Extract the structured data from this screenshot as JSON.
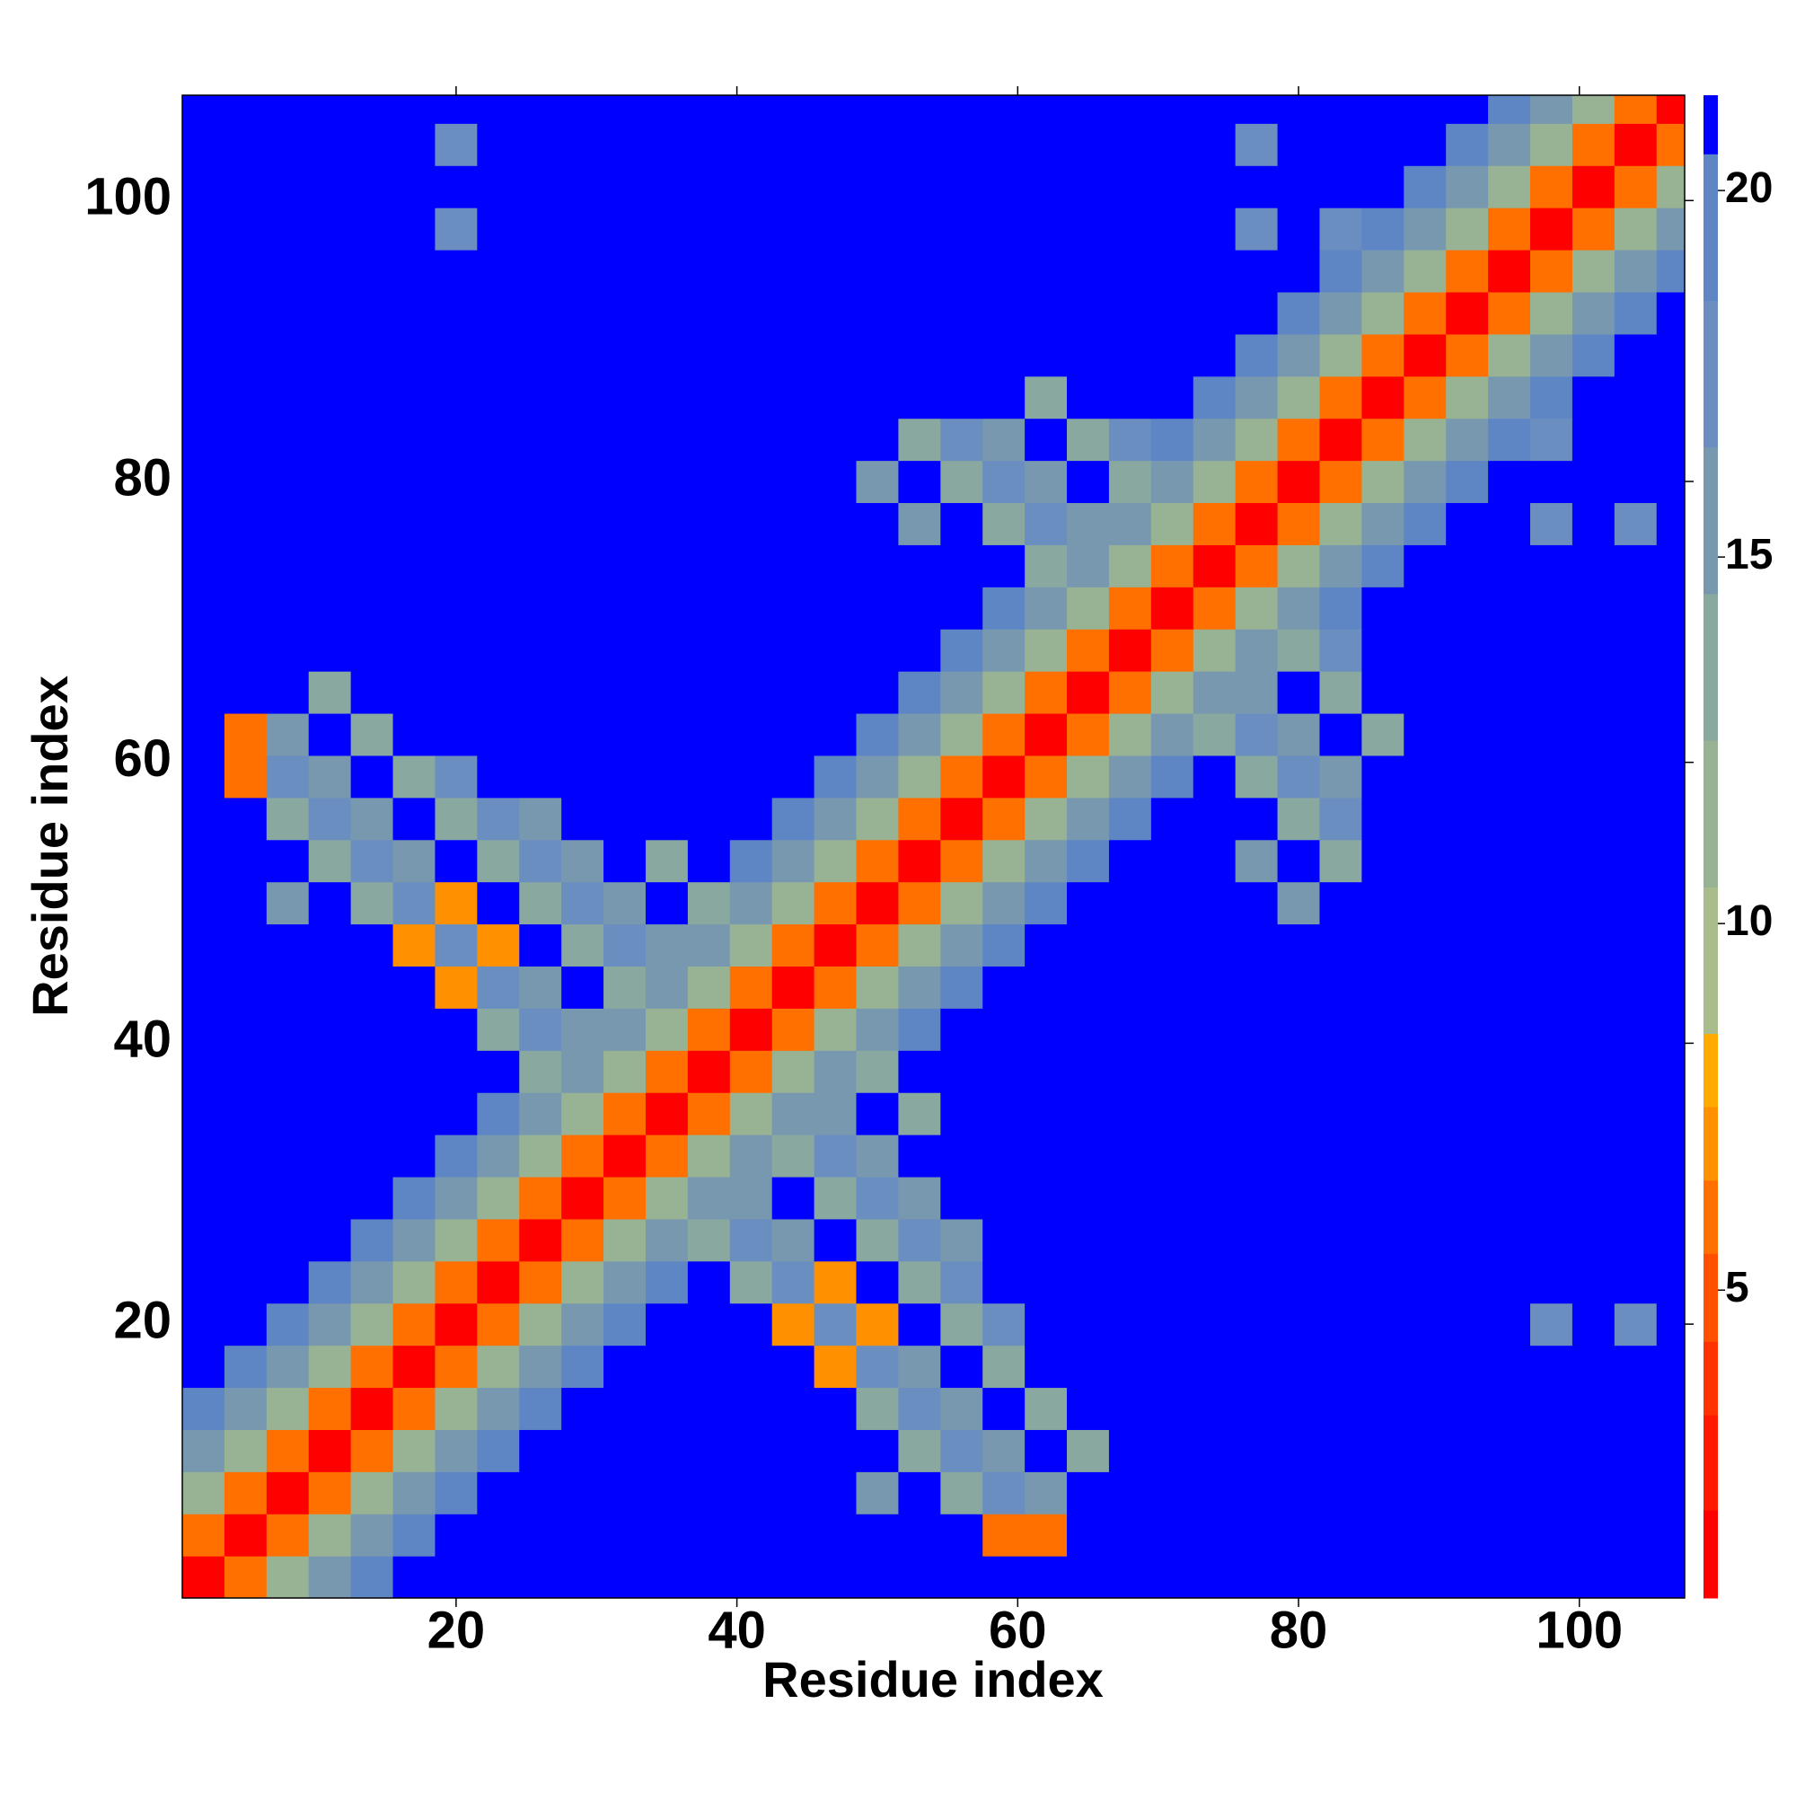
{
  "chart_data": {
    "type": "heatmap",
    "x_label": "Residue index",
    "y_label": "Residue index",
    "xlim": [
      0.5,
      107.5
    ],
    "ylim": [
      0.5,
      107.5
    ],
    "xticks": [
      20,
      40,
      60,
      80,
      100
    ],
    "yticks": [
      20,
      40,
      60,
      80,
      100
    ],
    "zlim": [
      0.8,
      21.3
    ],
    "zticks": [
      5,
      10,
      15,
      20
    ],
    "colorscale": [
      {
        "max": 2,
        "color": "#ff0000"
      },
      {
        "max": 3.3,
        "color": "#ff1a00"
      },
      {
        "max": 4.3,
        "color": "#ff3300"
      },
      {
        "max": 5.5,
        "color": "#ff5000"
      },
      {
        "max": 6.5,
        "color": "#ff7000"
      },
      {
        "max": 7.5,
        "color": "#ff9000"
      },
      {
        "max": 8.5,
        "color": "#ffaa00"
      },
      {
        "max": 10.5,
        "color": "#a8bc8c"
      },
      {
        "max": 12.5,
        "color": "#98b294"
      },
      {
        "max": 14.5,
        "color": "#88a8a0"
      },
      {
        "max": 16.5,
        "color": "#7898b0"
      },
      {
        "max": 18.5,
        "color": "#6a8ec0"
      },
      {
        "max": 20.5,
        "color": "#5f86c4"
      },
      {
        "max": 21.3,
        "color": "#0000ff"
      }
    ],
    "x": [
      2,
      5,
      8,
      11,
      14,
      17,
      20,
      23,
      26,
      29,
      32,
      35,
      38,
      41,
      44,
      47,
      50,
      53,
      56,
      59,
      62,
      65,
      68,
      71,
      74,
      77,
      80,
      83,
      86,
      89,
      92,
      95,
      98,
      101,
      104,
      107
    ],
    "y": [
      2,
      5,
      8,
      11,
      14,
      17,
      20,
      23,
      26,
      29,
      32,
      35,
      38,
      41,
      44,
      47,
      50,
      53,
      56,
      59,
      62,
      65,
      68,
      71,
      74,
      77,
      80,
      83,
      86,
      89,
      92,
      95,
      98,
      101,
      104,
      107
    ],
    "z": [
      [
        1,
        6,
        11,
        15,
        19,
        21,
        21,
        21,
        21,
        21,
        21,
        21,
        21,
        21,
        21,
        21,
        21,
        21,
        21,
        21,
        21,
        21,
        21,
        21,
        21,
        21,
        21,
        21,
        21,
        21,
        21,
        21,
        21,
        21,
        21,
        21
      ],
      [
        6,
        1,
        6,
        11,
        15,
        19,
        21,
        21,
        21,
        21,
        21,
        21,
        21,
        21,
        21,
        21,
        21,
        21,
        21,
        6,
        6,
        21,
        21,
        21,
        21,
        21,
        21,
        21,
        21,
        21,
        21,
        21,
        21,
        21,
        21,
        21
      ],
      [
        11,
        6,
        1,
        6,
        11,
        15,
        19,
        21,
        21,
        21,
        21,
        21,
        21,
        21,
        21,
        21,
        16,
        21,
        14,
        17,
        16,
        21,
        21,
        21,
        21,
        21,
        21,
        21,
        21,
        21,
        21,
        21,
        21,
        21,
        21,
        21
      ],
      [
        15,
        11,
        6,
        1,
        6,
        11,
        15,
        19,
        21,
        21,
        21,
        21,
        21,
        21,
        21,
        21,
        21,
        14,
        17,
        16,
        21,
        14,
        21,
        21,
        21,
        21,
        21,
        21,
        21,
        21,
        21,
        21,
        21,
        21,
        21,
        21
      ],
      [
        19,
        15,
        11,
        6,
        1,
        6,
        11,
        15,
        19,
        21,
        21,
        21,
        21,
        21,
        21,
        21,
        14,
        17,
        16,
        21,
        14,
        21,
        21,
        21,
        21,
        21,
        21,
        21,
        21,
        21,
        21,
        21,
        21,
        21,
        21,
        21
      ],
      [
        21,
        19,
        15,
        11,
        6,
        1,
        6,
        11,
        15,
        19,
        21,
        21,
        21,
        21,
        21,
        7,
        17,
        16,
        21,
        14,
        21,
        21,
        21,
        21,
        21,
        21,
        21,
        21,
        21,
        21,
        21,
        21,
        21,
        21,
        21,
        21
      ],
      [
        21,
        21,
        19,
        15,
        11,
        6,
        1,
        6,
        11,
        15,
        19,
        21,
        21,
        21,
        7,
        17,
        7,
        21,
        14,
        17,
        21,
        21,
        21,
        21,
        21,
        21,
        21,
        21,
        21,
        21,
        21,
        21,
        17,
        21,
        17,
        21
      ],
      [
        21,
        21,
        21,
        19,
        15,
        11,
        6,
        1,
        6,
        11,
        15,
        19,
        21,
        14,
        17,
        7,
        21,
        14,
        17,
        21,
        21,
        21,
        21,
        21,
        21,
        21,
        21,
        21,
        21,
        21,
        21,
        21,
        21,
        21,
        21,
        21
      ],
      [
        21,
        21,
        21,
        21,
        19,
        15,
        11,
        6,
        1,
        6,
        11,
        15,
        14,
        17,
        16,
        21,
        14,
        17,
        16,
        21,
        21,
        21,
        21,
        21,
        21,
        21,
        21,
        21,
        21,
        21,
        21,
        21,
        21,
        21,
        21,
        21
      ],
      [
        21,
        21,
        21,
        21,
        21,
        19,
        15,
        11,
        6,
        1,
        6,
        11,
        15,
        16,
        21,
        14,
        17,
        16,
        21,
        21,
        21,
        21,
        21,
        21,
        21,
        21,
        21,
        21,
        21,
        21,
        21,
        21,
        21,
        21,
        21,
        21
      ],
      [
        21,
        21,
        21,
        21,
        21,
        21,
        19,
        15,
        11,
        6,
        1,
        6,
        11,
        15,
        14,
        17,
        16,
        21,
        21,
        21,
        21,
        21,
        21,
        21,
        21,
        21,
        21,
        21,
        21,
        21,
        21,
        21,
        21,
        21,
        21,
        21
      ],
      [
        21,
        21,
        21,
        21,
        21,
        21,
        21,
        19,
        15,
        11,
        6,
        1,
        6,
        11,
        15,
        16,
        21,
        14,
        21,
        21,
        21,
        21,
        21,
        21,
        21,
        21,
        21,
        21,
        21,
        21,
        21,
        21,
        21,
        21,
        21,
        21
      ],
      [
        21,
        21,
        21,
        21,
        21,
        21,
        21,
        21,
        14,
        15,
        11,
        6,
        1,
        6,
        11,
        15,
        14,
        21,
        21,
        21,
        21,
        21,
        21,
        21,
        21,
        21,
        21,
        21,
        21,
        21,
        21,
        21,
        21,
        21,
        21,
        21
      ],
      [
        21,
        21,
        21,
        21,
        21,
        21,
        21,
        14,
        17,
        16,
        15,
        11,
        6,
        1,
        6,
        11,
        15,
        19,
        21,
        21,
        21,
        21,
        21,
        21,
        21,
        21,
        21,
        21,
        21,
        21,
        21,
        21,
        21,
        21,
        21,
        21
      ],
      [
        21,
        21,
        21,
        21,
        21,
        21,
        7,
        17,
        16,
        21,
        14,
        15,
        11,
        6,
        1,
        6,
        11,
        15,
        19,
        21,
        21,
        21,
        21,
        21,
        21,
        21,
        21,
        21,
        21,
        21,
        21,
        21,
        21,
        21,
        21,
        21
      ],
      [
        21,
        21,
        21,
        21,
        21,
        7,
        17,
        7,
        21,
        14,
        17,
        16,
        15,
        11,
        6,
        1,
        6,
        11,
        15,
        19,
        21,
        21,
        21,
        21,
        21,
        21,
        21,
        21,
        21,
        21,
        21,
        21,
        21,
        21,
        21,
        21
      ],
      [
        21,
        21,
        16,
        21,
        14,
        17,
        7,
        21,
        14,
        17,
        16,
        21,
        14,
        15,
        11,
        6,
        1,
        6,
        11,
        15,
        19,
        21,
        21,
        21,
        21,
        21,
        16,
        21,
        21,
        21,
        21,
        21,
        21,
        21,
        21,
        21
      ],
      [
        21,
        21,
        21,
        14,
        17,
        16,
        21,
        14,
        17,
        16,
        21,
        14,
        21,
        19,
        15,
        11,
        6,
        1,
        6,
        11,
        15,
        19,
        21,
        21,
        21,
        16,
        21,
        14,
        21,
        21,
        21,
        21,
        21,
        21,
        21,
        21
      ],
      [
        21,
        21,
        14,
        17,
        16,
        21,
        14,
        17,
        16,
        21,
        21,
        21,
        21,
        21,
        19,
        15,
        11,
        6,
        1,
        6,
        11,
        15,
        19,
        21,
        21,
        21,
        14,
        17,
        21,
        21,
        21,
        21,
        21,
        21,
        21,
        21
      ],
      [
        21,
        6,
        17,
        16,
        21,
        14,
        17,
        21,
        21,
        21,
        21,
        21,
        21,
        21,
        21,
        19,
        15,
        11,
        6,
        1,
        6,
        11,
        15,
        19,
        21,
        14,
        17,
        16,
        21,
        21,
        21,
        21,
        21,
        21,
        21,
        21
      ],
      [
        21,
        6,
        16,
        21,
        14,
        21,
        21,
        21,
        21,
        21,
        21,
        21,
        21,
        21,
        21,
        21,
        19,
        15,
        11,
        6,
        1,
        6,
        11,
        15,
        14,
        17,
        16,
        21,
        14,
        21,
        21,
        21,
        21,
        21,
        21,
        21
      ],
      [
        21,
        21,
        21,
        14,
        21,
        21,
        21,
        21,
        21,
        21,
        21,
        21,
        21,
        21,
        21,
        21,
        21,
        19,
        15,
        11,
        6,
        1,
        6,
        11,
        15,
        16,
        21,
        14,
        21,
        21,
        21,
        21,
        21,
        21,
        21,
        21
      ],
      [
        21,
        21,
        21,
        21,
        21,
        21,
        21,
        21,
        21,
        21,
        21,
        21,
        21,
        21,
        21,
        21,
        21,
        21,
        19,
        15,
        11,
        6,
        1,
        6,
        11,
        15,
        14,
        17,
        21,
        21,
        21,
        21,
        21,
        21,
        21,
        21
      ],
      [
        21,
        21,
        21,
        21,
        21,
        21,
        21,
        21,
        21,
        21,
        21,
        21,
        21,
        21,
        21,
        21,
        21,
        21,
        21,
        19,
        15,
        11,
        6,
        1,
        6,
        11,
        15,
        19,
        21,
        21,
        21,
        21,
        21,
        21,
        21,
        21
      ],
      [
        21,
        21,
        21,
        21,
        21,
        21,
        21,
        21,
        21,
        21,
        21,
        21,
        21,
        21,
        21,
        21,
        21,
        21,
        21,
        21,
        14,
        15,
        11,
        6,
        1,
        6,
        11,
        15,
        19,
        21,
        21,
        21,
        21,
        21,
        21,
        21
      ],
      [
        21,
        21,
        21,
        21,
        21,
        21,
        21,
        21,
        21,
        21,
        21,
        21,
        21,
        21,
        21,
        21,
        21,
        16,
        21,
        14,
        17,
        16,
        15,
        11,
        6,
        1,
        6,
        11,
        15,
        19,
        21,
        21,
        17,
        21,
        17,
        21
      ],
      [
        21,
        21,
        21,
        21,
        21,
        21,
        21,
        21,
        21,
        21,
        21,
        21,
        21,
        21,
        21,
        21,
        16,
        21,
        14,
        17,
        16,
        21,
        14,
        15,
        11,
        6,
        1,
        6,
        11,
        15,
        19,
        21,
        21,
        21,
        21,
        21
      ],
      [
        21,
        21,
        21,
        21,
        21,
        21,
        21,
        21,
        21,
        21,
        21,
        21,
        21,
        21,
        21,
        21,
        21,
        14,
        17,
        16,
        21,
        14,
        17,
        19,
        15,
        11,
        6,
        1,
        6,
        11,
        15,
        19,
        17,
        21,
        21,
        21
      ],
      [
        21,
        21,
        21,
        21,
        21,
        21,
        21,
        21,
        21,
        21,
        21,
        21,
        21,
        21,
        21,
        21,
        21,
        21,
        21,
        21,
        14,
        21,
        21,
        21,
        19,
        15,
        11,
        6,
        1,
        6,
        11,
        15,
        19,
        21,
        21,
        21
      ],
      [
        21,
        21,
        21,
        21,
        21,
        21,
        21,
        21,
        21,
        21,
        21,
        21,
        21,
        21,
        21,
        21,
        21,
        21,
        21,
        21,
        21,
        21,
        21,
        21,
        21,
        19,
        15,
        11,
        6,
        1,
        6,
        11,
        15,
        19,
        21,
        21
      ],
      [
        21,
        21,
        21,
        21,
        21,
        21,
        21,
        21,
        21,
        21,
        21,
        21,
        21,
        21,
        21,
        21,
        21,
        21,
        21,
        21,
        21,
        21,
        21,
        21,
        21,
        21,
        19,
        15,
        11,
        6,
        1,
        6,
        11,
        15,
        19,
        21
      ],
      [
        21,
        21,
        21,
        21,
        21,
        21,
        21,
        21,
        21,
        21,
        21,
        21,
        21,
        21,
        21,
        21,
        21,
        21,
        21,
        21,
        21,
        21,
        21,
        21,
        21,
        21,
        21,
        19,
        15,
        11,
        6,
        1,
        6,
        11,
        15,
        19
      ],
      [
        21,
        21,
        21,
        21,
        21,
        21,
        17,
        21,
        21,
        21,
        21,
        21,
        21,
        21,
        21,
        21,
        21,
        21,
        21,
        21,
        21,
        21,
        21,
        21,
        21,
        17,
        21,
        17,
        19,
        15,
        11,
        6,
        1,
        6,
        11,
        15
      ],
      [
        21,
        21,
        21,
        21,
        21,
        21,
        21,
        21,
        21,
        21,
        21,
        21,
        21,
        21,
        21,
        21,
        21,
        21,
        21,
        21,
        21,
        21,
        21,
        21,
        21,
        21,
        21,
        21,
        21,
        19,
        15,
        11,
        6,
        1,
        6,
        11
      ],
      [
        21,
        21,
        21,
        21,
        21,
        21,
        17,
        21,
        21,
        21,
        21,
        21,
        21,
        21,
        21,
        21,
        21,
        21,
        21,
        21,
        21,
        21,
        21,
        21,
        21,
        17,
        21,
        21,
        21,
        21,
        19,
        15,
        11,
        6,
        1,
        6
      ],
      [
        21,
        21,
        21,
        21,
        21,
        21,
        21,
        21,
        21,
        21,
        21,
        21,
        21,
        21,
        21,
        21,
        21,
        21,
        21,
        21,
        21,
        21,
        21,
        21,
        21,
        21,
        21,
        21,
        21,
        21,
        21,
        19,
        15,
        11,
        6,
        1
      ]
    ]
  }
}
